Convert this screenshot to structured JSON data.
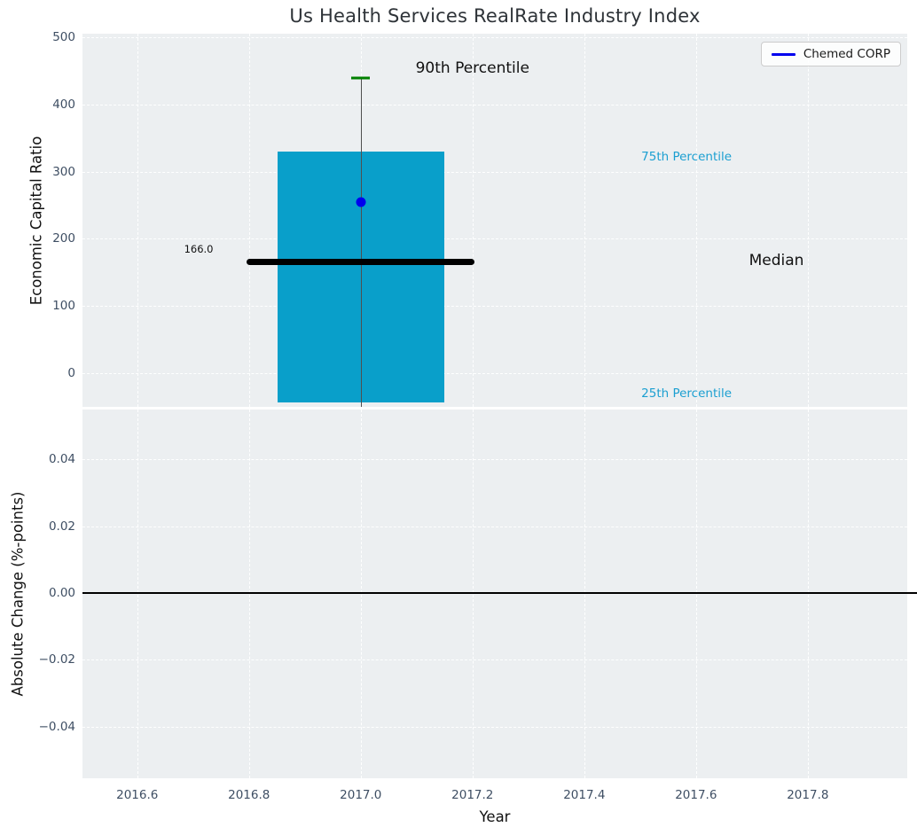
{
  "chart_data": [
    {
      "type": "bar",
      "subtype": "percentile-box-with-company-marker",
      "title": "Us Health Services RealRate Industry Index",
      "ylabel": "Economic Capital Ratio",
      "xlim": [
        2016.502,
        2017.978
      ],
      "ylim": [
        -50.5,
        505.5
      ],
      "xticks": [
        2016.6,
        2016.8,
        2017.0,
        2017.2,
        2017.4,
        2017.6,
        2017.8
      ],
      "xtick_labels": null,
      "yticks": [
        0,
        100,
        200,
        300,
        400,
        500
      ],
      "ytick_labels": [
        "0",
        "100",
        "200",
        "300",
        "400",
        "500"
      ],
      "grid": true,
      "background_color": "#eceff1",
      "legend": {
        "label": "Chemed CORP",
        "line_color": "#0000ee",
        "position": "upper right"
      },
      "box": {
        "x_center": 2017.0,
        "x0": 2016.851,
        "x1": 2017.149,
        "p90": 440,
        "p75": 330,
        "median": 166,
        "p25": -44,
        "median_x0": 2016.795,
        "median_x1": 2017.203,
        "cap_x0": 2016.983,
        "cap_x1": 2017.017,
        "bar_color": "#099fca",
        "cap_color": "#008000",
        "median_color": "#000000",
        "whisker_color": "#4f4f4f"
      },
      "point": {
        "x": 2017.0,
        "y": 255,
        "color": "#0000ee",
        "series": "Chemed CORP"
      },
      "annotations": [
        {
          "name": "90th-percentile",
          "text": "90th Percentile",
          "x": 2017.2,
          "y": 454,
          "color": "#111111",
          "cls": "lg"
        },
        {
          "name": "75th-percentile",
          "text": "75th Percentile",
          "x": 2017.583,
          "y": 322,
          "color": "#1b9fd1",
          "cls": "md"
        },
        {
          "name": "median",
          "text": "Median",
          "x": 2017.744,
          "y": 167,
          "color": "#111111",
          "cls": "lg"
        },
        {
          "name": "25th-percentile",
          "text": "25th Percentile",
          "x": 2017.583,
          "y": -31,
          "color": "#1b9fd1",
          "cls": "md"
        },
        {
          "name": "median-value",
          "text": "166.0",
          "x": 2016.71,
          "y": 184,
          "color": "#111111",
          "cls": "sm"
        }
      ]
    },
    {
      "type": "line",
      "ylabel": "Absolute Change (%-points)",
      "xlabel": "Year",
      "xlim": [
        2016.502,
        2017.978
      ],
      "ylim": [
        -0.0555,
        0.0549
      ],
      "xticks": [
        2016.6,
        2016.8,
        2017.0,
        2017.2,
        2017.4,
        2017.6,
        2017.8
      ],
      "xtick_labels": [
        "2016.6",
        "2016.8",
        "2017.0",
        "2017.2",
        "2017.4",
        "2017.6",
        "2017.8"
      ],
      "yticks": [
        0.04,
        0.02,
        0.0,
        -0.02,
        -0.04
      ],
      "ytick_labels": [
        "0.04",
        "0.02",
        "0.00",
        "−0.02",
        "−0.04"
      ],
      "grid": true,
      "background_color": "#eceff1",
      "zero_line": 0.0,
      "series": []
    }
  ]
}
